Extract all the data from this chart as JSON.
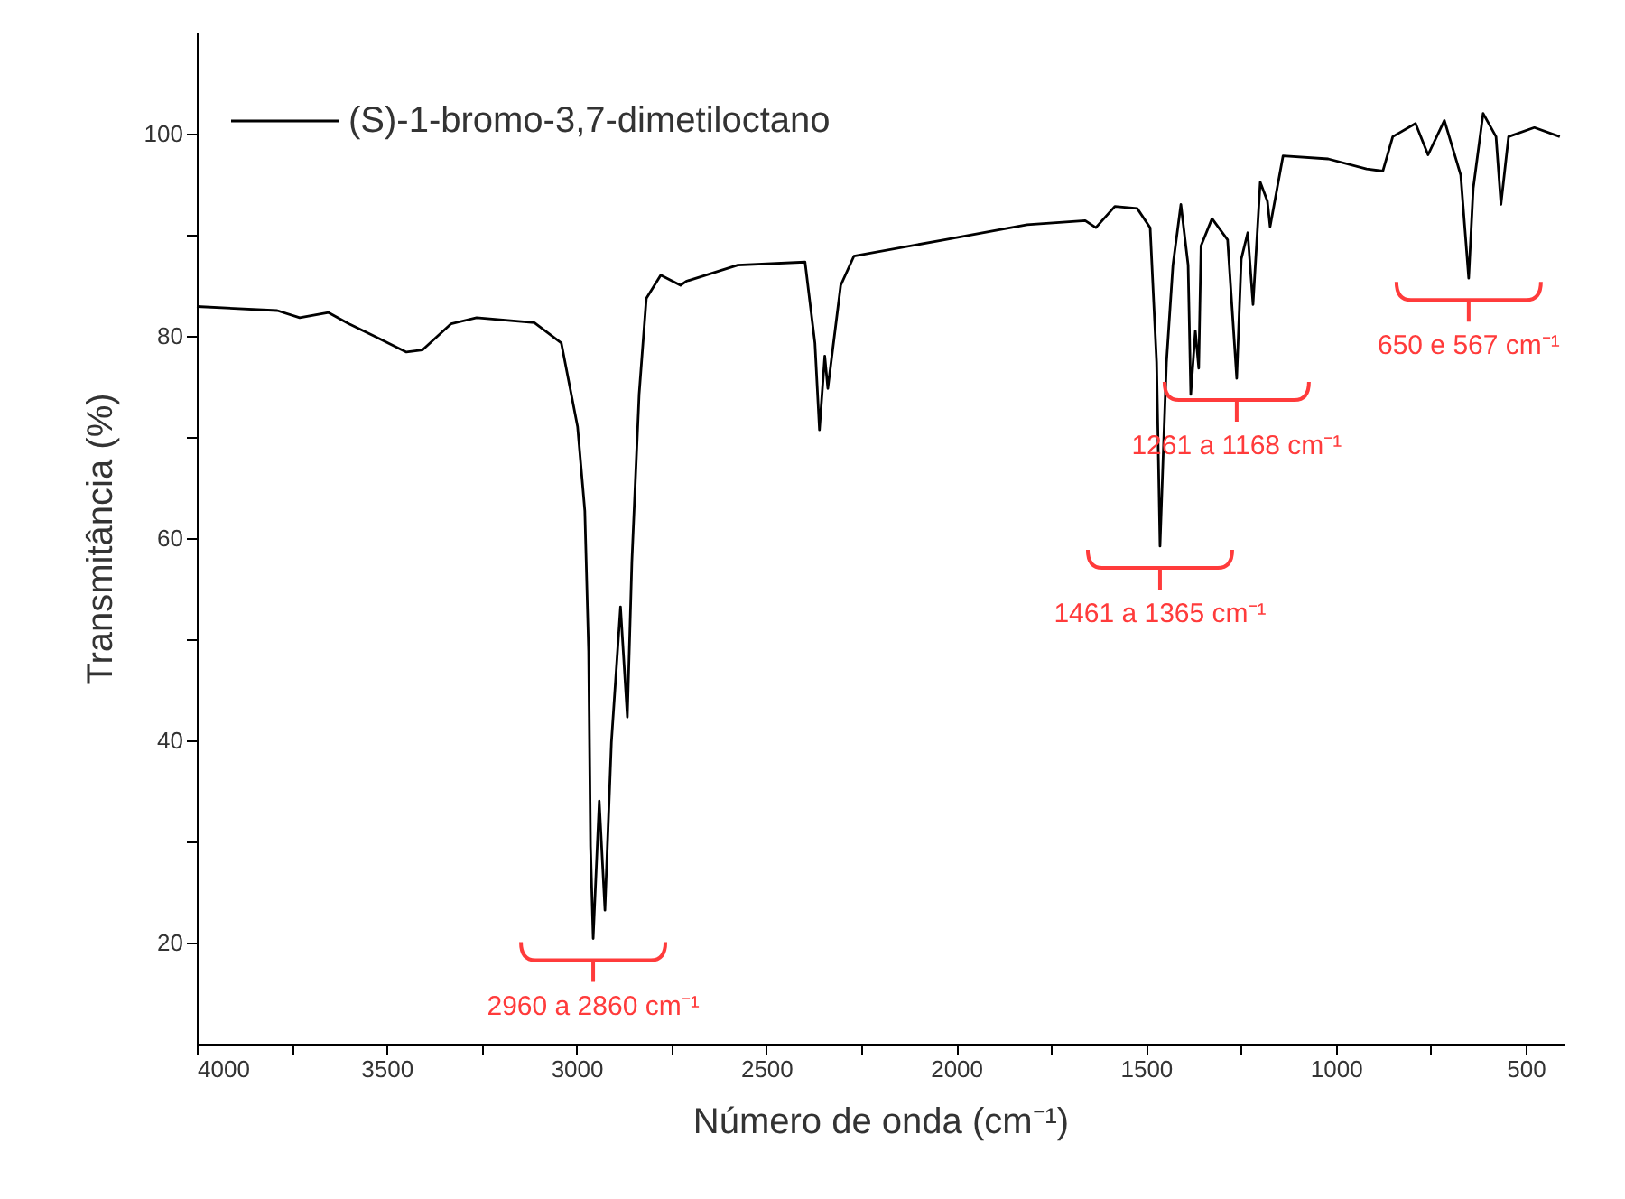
{
  "chart_data": {
    "type": "line",
    "xlabel": "Número de onda (cm⁻¹)",
    "ylabel": "Transmitância (%)",
    "xlim": [
      4000,
      400
    ],
    "ylim": [
      10,
      110
    ],
    "xticks": [
      4000,
      {
        "value": 3750,
        "label": null
      },
      3500,
      {
        "value": 3250,
        "label": null
      },
      3000,
      {
        "value": 2750,
        "label": null
      },
      2500,
      {
        "value": 2250,
        "label": null
      },
      2000,
      {
        "value": 1750,
        "label": null
      },
      1500,
      {
        "value": 1250,
        "label": null
      },
      1000,
      {
        "value": 750,
        "label": null
      },
      500
    ],
    "yticks": [
      20,
      {
        "value": 30,
        "label": null
      },
      40,
      {
        "value": 50,
        "label": null
      },
      60,
      {
        "value": 70,
        "label": null
      },
      80,
      {
        "value": 90,
        "label": null
      },
      100
    ],
    "legend": "top left",
    "series": [
      {
        "name": "(S)-1-bromo-3,7-dimetiloctano",
        "color": "#000000",
        "x": [
          4000,
          3788,
          3729,
          3653,
          3600,
          3534,
          3448,
          3406,
          3330,
          3263,
          3111,
          3040,
          2997,
          2978,
          2968,
          2963,
          2956,
          2940,
          2925,
          2908,
          2884,
          2866,
          2854,
          2835,
          2816,
          2778,
          2726,
          2711,
          2575,
          2398,
          2372,
          2360,
          2346,
          2338,
          2304,
          2269,
          2031,
          1813,
          1660,
          1632,
          1582,
          1523,
          1489,
          1472,
          1463,
          1446,
          1429,
          1408,
          1389,
          1382,
          1370,
          1361,
          1355,
          1326,
          1285,
          1261,
          1249,
          1232,
          1218,
          1199,
          1180,
          1173,
          1139,
          1020,
          919,
          876,
          850,
          790,
          757,
          714,
          671,
          650,
          638,
          612,
          578,
          565,
          545,
          477,
          410
        ],
        "values": [
          82.9,
          82.5,
          81.8,
          82.3,
          81.2,
          80,
          78.4,
          78.6,
          81.2,
          81.8,
          81.3,
          79.3,
          71,
          62.7,
          48.8,
          29.5,
          20.4,
          34,
          23.2,
          39.8,
          53.2,
          42.3,
          57.7,
          74.2,
          83.7,
          86,
          85,
          85.4,
          87,
          87.3,
          79.3,
          70.7,
          78,
          74.8,
          85,
          87.9,
          89.5,
          91,
          91.4,
          90.7,
          92.8,
          92.6,
          90.7,
          77.4,
          59.2,
          77.4,
          87,
          93,
          87,
          74.2,
          80.5,
          76.8,
          88.9,
          91.6,
          89.5,
          75.8,
          87.6,
          90.2,
          83.1,
          95.2,
          93.3,
          90.8,
          97.8,
          97.5,
          96.5,
          96.3,
          99.7,
          101,
          97.9,
          101.3,
          95.9,
          85.7,
          94.6,
          102,
          99.7,
          93,
          99.7,
          100.6,
          99.7
        ]
      }
    ],
    "annotations": [
      {
        "text": "2960 a 2860 cm⁻¹",
        "x": 2956,
        "y": 20.4
      },
      {
        "text": "1461 a 1365 cm⁻¹",
        "x": 1463,
        "y": 59.2
      },
      {
        "text": "1261 a 1168 cm⁻¹",
        "x": 1261,
        "y": 75.8
      },
      {
        "text": "650 e 567 cm⁻¹",
        "x": 650,
        "y": 85.7
      }
    ]
  }
}
